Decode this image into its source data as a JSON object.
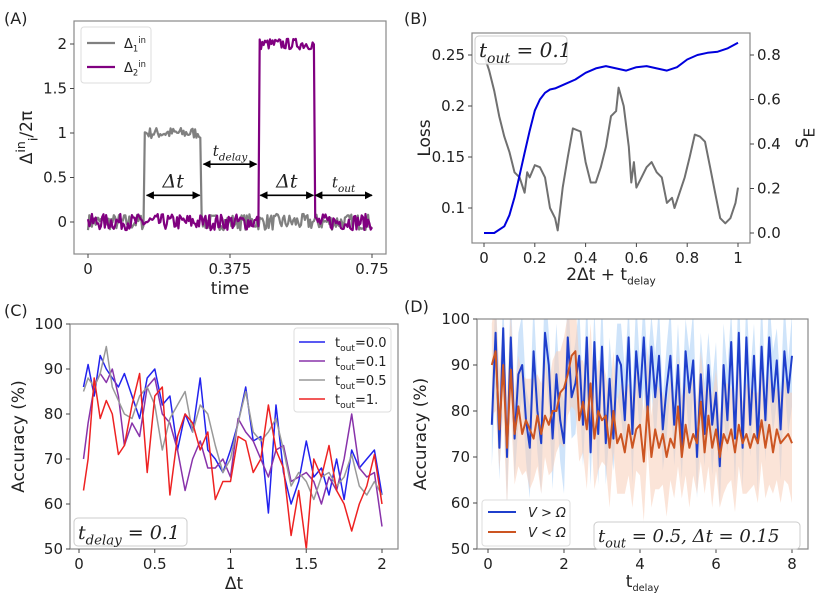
{
  "chart_data": [
    {
      "id": "A",
      "type": "line",
      "panel_label": "(A)",
      "title": "",
      "xlabel": "time",
      "ylabel": "Δ_i^in/2π",
      "xlim": [
        0,
        0.75
      ],
      "ylim": [
        -0.36,
        2.26
      ],
      "xticks": [
        "0",
        "0.375",
        "0.75"
      ],
      "xtick_values": [
        0,
        0.375,
        0.75
      ],
      "yticks": [
        "0",
        "0.5",
        "1",
        "1.5",
        "2"
      ],
      "ytick_values": [
        0,
        0.5,
        1,
        1.5,
        2
      ],
      "legend": {
        "position": "top-left",
        "entries": [
          "Δ_1^in",
          "Δ_2^in"
        ]
      },
      "series": [
        {
          "name": "Δ_1^in",
          "color": "#808080",
          "pulses": [
            {
              "start": 0.15,
              "end": 0.3,
              "level": 1.0
            }
          ],
          "baseline": 0.0,
          "noise": 0.07
        },
        {
          "name": "Δ_2^in",
          "color": "#800080",
          "pulses": [
            {
              "start": 0.45,
              "end": 0.6,
              "level": 2.0
            }
          ],
          "baseline": 0.0,
          "noise": 0.07
        }
      ],
      "annotations": [
        {
          "text": "Δt",
          "from": 0.155,
          "to": 0.295,
          "y": 0.3
        },
        {
          "text": "t_delay",
          "from": 0.305,
          "to": 0.445,
          "y": 0.65
        },
        {
          "text": "Δt",
          "from": 0.455,
          "to": 0.595,
          "y": 0.3
        },
        {
          "text": "t_out",
          "from": 0.6,
          "to": 0.75,
          "y": 0.3
        }
      ]
    },
    {
      "id": "B",
      "type": "line",
      "panel_label": "(B)",
      "xlabel": "2Δt + t_delay",
      "ylabel": "Loss",
      "ylabel_right": "S_E",
      "xlim": [
        -0.05,
        1.05
      ],
      "ylim": [
        0.065,
        0.267
      ],
      "ylim_right": [
        -0.045,
        0.88
      ],
      "xticks": [
        "0",
        "0.2",
        "0.4",
        "0.6",
        "0.8",
        "1"
      ],
      "xtick_values": [
        0,
        0.2,
        0.4,
        0.6,
        0.8,
        1
      ],
      "yticks": [
        "0.1",
        "0.15",
        "0.2",
        "0.25"
      ],
      "ytick_values": [
        0.1,
        0.15,
        0.2,
        0.25
      ],
      "yticks_right": [
        "0.0",
        "0.2",
        "0.4",
        "0.6",
        "0.8"
      ],
      "ytick_values_right": [
        0.0,
        0.2,
        0.4,
        0.6,
        0.8
      ],
      "annotation": "t_out = 0.1",
      "series": [
        {
          "name": "Loss",
          "axis": "left",
          "color": "#707070",
          "x": [
            0.0,
            0.02,
            0.04,
            0.06,
            0.08,
            0.1,
            0.12,
            0.14,
            0.16,
            0.17,
            0.18,
            0.2,
            0.22,
            0.24,
            0.26,
            0.28,
            0.29,
            0.31,
            0.33,
            0.35,
            0.37,
            0.38,
            0.4,
            0.42,
            0.44,
            0.46,
            0.48,
            0.5,
            0.52,
            0.53,
            0.55,
            0.57,
            0.58,
            0.59,
            0.6,
            0.62,
            0.64,
            0.66,
            0.68,
            0.7,
            0.72,
            0.74,
            0.75,
            0.77,
            0.79,
            0.81,
            0.83,
            0.85,
            0.87,
            0.89,
            0.91,
            0.93,
            0.95,
            0.97,
            0.99,
            1.0
          ],
          "values": [
            0.25,
            0.235,
            0.215,
            0.19,
            0.17,
            0.155,
            0.135,
            0.13,
            0.115,
            0.135,
            0.13,
            0.142,
            0.14,
            0.13,
            0.1,
            0.09,
            0.078,
            0.12,
            0.15,
            0.178,
            0.176,
            0.175,
            0.145,
            0.125,
            0.125,
            0.14,
            0.16,
            0.19,
            0.195,
            0.218,
            0.2,
            0.16,
            0.125,
            0.145,
            0.12,
            0.13,
            0.14,
            0.145,
            0.135,
            0.13,
            0.105,
            0.11,
            0.1,
            0.115,
            0.13,
            0.15,
            0.172,
            0.17,
            0.165,
            0.14,
            0.115,
            0.09,
            0.085,
            0.09,
            0.105,
            0.12
          ]
        },
        {
          "name": "S_E",
          "axis": "right",
          "color": "#0000dd",
          "x": [
            0.0,
            0.04,
            0.08,
            0.1,
            0.12,
            0.14,
            0.16,
            0.18,
            0.2,
            0.22,
            0.24,
            0.26,
            0.28,
            0.32,
            0.36,
            0.4,
            0.44,
            0.48,
            0.52,
            0.56,
            0.6,
            0.64,
            0.68,
            0.72,
            0.76,
            0.8,
            0.84,
            0.88,
            0.92,
            0.96,
            1.0
          ],
          "values": [
            0.0,
            0.0,
            0.03,
            0.08,
            0.16,
            0.26,
            0.36,
            0.46,
            0.55,
            0.6,
            0.63,
            0.645,
            0.65,
            0.67,
            0.69,
            0.72,
            0.74,
            0.75,
            0.74,
            0.73,
            0.745,
            0.75,
            0.74,
            0.73,
            0.745,
            0.78,
            0.8,
            0.81,
            0.815,
            0.83,
            0.855
          ]
        }
      ]
    },
    {
      "id": "C",
      "type": "line",
      "panel_label": "(C)",
      "xlabel": "Δt",
      "ylabel": "Accuracy (%)",
      "xlim": [
        -0.08,
        2.06
      ],
      "ylim": [
        50,
        100
      ],
      "xticks": [
        "0",
        "0.5",
        "1",
        "1.5",
        "2"
      ],
      "xtick_values": [
        0,
        0.5,
        1,
        1.5,
        2
      ],
      "yticks": [
        "50",
        "60",
        "70",
        "80",
        "90",
        "100"
      ],
      "ytick_values": [
        50,
        60,
        70,
        80,
        90,
        100
      ],
      "annotation": "t_delay = 0.1",
      "legend": {
        "position": "top-right",
        "entries": [
          "t_out=0.0",
          "t_out=0.1",
          "t_out=0.5",
          "t_out=1."
        ]
      },
      "series": [
        {
          "name": "t_out=0.0",
          "color": "#2222ee",
          "x": [
            0.03,
            0.06,
            0.1,
            0.14,
            0.18,
            0.22,
            0.26,
            0.3,
            0.35,
            0.4,
            0.45,
            0.5,
            0.55,
            0.6,
            0.65,
            0.7,
            0.75,
            0.8,
            0.85,
            0.9,
            0.95,
            1.0,
            1.05,
            1.1,
            1.15,
            1.2,
            1.25,
            1.3,
            1.35,
            1.4,
            1.45,
            1.5,
            1.55,
            1.6,
            1.65,
            1.7,
            1.75,
            1.8,
            1.85,
            1.9,
            1.95,
            2.0
          ],
          "values": [
            86,
            91,
            84,
            93,
            90,
            88,
            86,
            89,
            84,
            79,
            88,
            90,
            82,
            84,
            72,
            80,
            76,
            88,
            72,
            70,
            67,
            72,
            78,
            86,
            74,
            75,
            58,
            82,
            67,
            60,
            65,
            74,
            66,
            68,
            62,
            70,
            61,
            72,
            68,
            70,
            72,
            62
          ]
        },
        {
          "name": "t_out=0.1",
          "color": "#8833aa",
          "x": [
            0.03,
            0.06,
            0.1,
            0.14,
            0.18,
            0.22,
            0.26,
            0.3,
            0.35,
            0.4,
            0.45,
            0.5,
            0.55,
            0.6,
            0.65,
            0.7,
            0.75,
            0.8,
            0.85,
            0.9,
            0.95,
            1.0,
            1.05,
            1.1,
            1.15,
            1.2,
            1.25,
            1.3,
            1.35,
            1.4,
            1.45,
            1.5,
            1.55,
            1.6,
            1.65,
            1.7,
            1.75,
            1.8,
            1.85,
            1.9,
            1.95,
            2.0
          ],
          "values": [
            70,
            78,
            86,
            89,
            87,
            90,
            84,
            73,
            78,
            75,
            86,
            88,
            80,
            78,
            72,
            63,
            70,
            74,
            68,
            68,
            70,
            66,
            79,
            76,
            74,
            70,
            66,
            72,
            73,
            65,
            66,
            67,
            65,
            60,
            66,
            63,
            70,
            80,
            68,
            66,
            67,
            55
          ]
        },
        {
          "name": "t_out=0.5",
          "color": "#999999",
          "x": [
            0.03,
            0.06,
            0.1,
            0.14,
            0.18,
            0.22,
            0.26,
            0.3,
            0.35,
            0.4,
            0.45,
            0.5,
            0.55,
            0.6,
            0.65,
            0.7,
            0.75,
            0.8,
            0.85,
            0.9,
            0.95,
            1.0,
            1.05,
            1.1,
            1.15,
            1.2,
            1.25,
            1.3,
            1.35,
            1.4,
            1.45,
            1.5,
            1.55,
            1.6,
            1.65,
            1.7,
            1.75,
            1.8,
            1.85,
            1.9,
            1.95,
            2.0
          ],
          "values": [
            85,
            88,
            86,
            89,
            95,
            86,
            83,
            80,
            79,
            84,
            86,
            82,
            72,
            79,
            82,
            85,
            76,
            82,
            80,
            73,
            67,
            70,
            78,
            85,
            76,
            74,
            76,
            79,
            72,
            64,
            67,
            65,
            61,
            66,
            67,
            64,
            66,
            71,
            64,
            62,
            65,
            62
          ]
        },
        {
          "name": "t_out=1.",
          "color": "#ee2222",
          "x": [
            0.03,
            0.06,
            0.1,
            0.14,
            0.18,
            0.22,
            0.26,
            0.3,
            0.35,
            0.4,
            0.45,
            0.5,
            0.55,
            0.6,
            0.65,
            0.7,
            0.75,
            0.8,
            0.85,
            0.9,
            0.95,
            1.0,
            1.05,
            1.1,
            1.15,
            1.2,
            1.25,
            1.3,
            1.35,
            1.4,
            1.45,
            1.5,
            1.55,
            1.6,
            1.65,
            1.7,
            1.75,
            1.8,
            1.85,
            1.9,
            1.95,
            2.0
          ],
          "values": [
            63,
            70,
            88,
            79,
            83,
            80,
            71,
            73,
            82,
            89,
            67,
            84,
            86,
            62,
            75,
            80,
            78,
            72,
            76,
            61,
            65,
            65,
            75,
            74,
            67,
            70,
            82,
            72,
            68,
            53,
            63,
            50,
            70,
            66,
            73,
            63,
            60,
            54,
            60,
            64,
            71,
            60
          ]
        }
      ]
    },
    {
      "id": "D",
      "type": "line",
      "panel_label": "(D)",
      "xlabel": "t_delay",
      "ylabel": "Accuracy (%)",
      "xlim": [
        -0.3,
        8.4
      ],
      "ylim": [
        50,
        100
      ],
      "xticks": [
        "0",
        "2",
        "4",
        "6",
        "8"
      ],
      "xtick_values": [
        0,
        2,
        4,
        6,
        8
      ],
      "yticks": [
        "50",
        "60",
        "70",
        "80",
        "90",
        "100"
      ],
      "ytick_values": [
        50,
        60,
        70,
        80,
        90,
        100
      ],
      "annotation": "t_out = 0.5, Δt = 0.15",
      "legend": {
        "position": "bottom-left",
        "entries": [
          "V > Ω",
          "V < Ω"
        ]
      },
      "series": [
        {
          "name": "V > Ω",
          "color": "#1f3fcc",
          "band_color": "#a8cdf5",
          "band": 7,
          "x": [
            0.1,
            0.2,
            0.3,
            0.4,
            0.5,
            0.6,
            0.7,
            0.8,
            0.9,
            1.0,
            1.1,
            1.2,
            1.3,
            1.4,
            1.5,
            1.6,
            1.7,
            1.8,
            1.9,
            2.0,
            2.1,
            2.2,
            2.3,
            2.4,
            2.5,
            2.6,
            2.7,
            2.8,
            2.9,
            3.0,
            3.1,
            3.2,
            3.3,
            3.4,
            3.5,
            3.6,
            3.7,
            3.8,
            3.9,
            4.0,
            4.1,
            4.2,
            4.3,
            4.4,
            4.5,
            4.6,
            4.7,
            4.8,
            4.9,
            5.0,
            5.1,
            5.2,
            5.3,
            5.4,
            5.5,
            5.6,
            5.7,
            5.8,
            5.9,
            6.0,
            6.1,
            6.2,
            6.3,
            6.4,
            6.5,
            6.6,
            6.7,
            6.8,
            6.9,
            7.0,
            7.1,
            7.2,
            7.3,
            7.4,
            7.5,
            7.6,
            7.7,
            7.8,
            7.9,
            8.0
          ],
          "values": [
            77,
            97,
            72,
            98,
            70,
            96,
            74,
            88,
            90,
            78,
            72,
            93,
            80,
            73,
            97,
            90,
            74,
            88,
            78,
            73,
            96,
            83,
            86,
            92,
            77,
            96,
            71,
            95,
            75,
            94,
            73,
            87,
            74,
            92,
            90,
            78,
            96,
            75,
            93,
            83,
            96,
            79,
            94,
            83,
            92,
            76,
            85,
            92,
            77,
            90,
            72,
            93,
            84,
            91,
            70,
            88,
            75,
            90,
            77,
            84,
            68,
            90,
            78,
            95,
            74,
            97,
            72,
            96,
            77,
            92,
            73,
            94,
            78,
            96,
            82,
            91,
            76,
            93,
            84,
            92
          ]
        },
        {
          "name": "V < Ω",
          "color": "#cc5522",
          "band_color": "#f8cdb8",
          "band": 9,
          "x": [
            0.1,
            0.2,
            0.3,
            0.4,
            0.5,
            0.6,
            0.7,
            0.8,
            0.9,
            1.0,
            1.1,
            1.2,
            1.3,
            1.4,
            1.5,
            1.6,
            1.7,
            1.8,
            1.9,
            2.0,
            2.1,
            2.2,
            2.3,
            2.4,
            2.5,
            2.6,
            2.7,
            2.8,
            2.9,
            3.0,
            3.1,
            3.2,
            3.3,
            3.4,
            3.5,
            3.6,
            3.7,
            3.8,
            3.9,
            4.0,
            4.1,
            4.2,
            4.3,
            4.4,
            4.5,
            4.6,
            4.7,
            4.8,
            4.9,
            5.0,
            5.1,
            5.2,
            5.3,
            5.4,
            5.5,
            5.6,
            5.7,
            5.8,
            5.9,
            6.0,
            6.1,
            6.2,
            6.3,
            6.4,
            6.5,
            6.6,
            6.7,
            6.8,
            6.9,
            7.0,
            7.1,
            7.2,
            7.3,
            7.4,
            7.5,
            7.6,
            7.7,
            7.8,
            7.9,
            8.0
          ],
          "values": [
            90,
            93,
            76,
            90,
            72,
            89,
            75,
            81,
            75,
            78,
            76,
            74,
            79,
            75,
            79,
            77,
            80,
            80,
            84,
            85,
            88,
            92,
            93,
            78,
            82,
            76,
            86,
            74,
            80,
            78,
            79,
            72,
            80,
            73,
            75,
            71,
            77,
            72,
            76,
            77,
            69,
            81,
            70,
            76,
            72,
            75,
            70,
            74,
            72,
            81,
            70,
            77,
            72,
            75,
            73,
            82,
            71,
            79,
            72,
            76,
            70,
            75,
            73,
            76,
            71,
            77,
            73,
            75,
            72,
            75,
            73,
            78,
            72,
            77,
            71,
            76,
            73,
            74,
            75,
            73
          ]
        }
      ]
    }
  ]
}
